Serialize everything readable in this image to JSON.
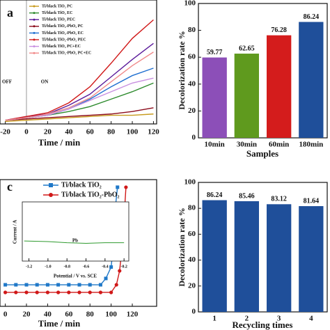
{
  "chart_data": [
    {
      "type": "line",
      "label": "a",
      "xlabel": "Time / min",
      "annotations": [
        "OFF",
        "ON"
      ],
      "xlim": [
        -25,
        123
      ],
      "xticks": [
        -20,
        0,
        20,
        40,
        60,
        80,
        100,
        120
      ],
      "ylim": [
        0,
        100
      ],
      "series": [
        {
          "name": "Ti/black TiO₂ PC",
          "color": "#c79a1c",
          "x": [
            -20,
            0,
            20,
            40,
            60,
            80,
            100,
            120
          ],
          "values": [
            2,
            3,
            4,
            5,
            6,
            7,
            7,
            8
          ]
        },
        {
          "name": "Ti/black TiO₂ EC",
          "color": "#2e8b2e",
          "x": [
            -20,
            0,
            20,
            40,
            60,
            80,
            100,
            120
          ],
          "values": [
            3,
            5,
            7,
            10,
            14,
            20,
            26,
            33
          ]
        },
        {
          "name": "Ti/black TiO₂ PEC",
          "color": "#5a1a9a",
          "x": [
            -20,
            0,
            20,
            40,
            60,
            80,
            100,
            120
          ],
          "values": [
            3,
            6,
            8,
            15,
            24,
            38,
            52,
            65
          ]
        },
        {
          "name": "Ti/black TiO₂-PbO₂ PC",
          "color": "#8b0a1a",
          "x": [
            -20,
            0,
            20,
            40,
            60,
            80,
            100,
            120
          ],
          "values": [
            3,
            4,
            5,
            6,
            7,
            8,
            10,
            13
          ]
        },
        {
          "name": "Ti/black TiO₂-PbO₂ EC",
          "color": "#1f6fd0",
          "x": [
            -20,
            0,
            20,
            40,
            60,
            80,
            100,
            120
          ],
          "values": [
            3,
            5,
            7,
            12,
            20,
            30,
            39,
            45
          ]
        },
        {
          "name": "Ti/black TiO₂-PbO₂ PEC",
          "color": "#d01818",
          "x": [
            -20,
            0,
            20,
            40,
            60,
            80,
            100,
            120
          ],
          "values": [
            3,
            6,
            9,
            17,
            30,
            49,
            69,
            84
          ]
        },
        {
          "name": "Ti/black TiO₂ PC+EC",
          "color": "#c890e0",
          "x": [
            -20,
            0,
            20,
            40,
            60,
            80,
            100,
            120
          ],
          "values": [
            3,
            5,
            7,
            12,
            19,
            26,
            33,
            37
          ]
        },
        {
          "name": "Ti/black TiO₂-PbO₂ PC+EC",
          "color": "#f08a8a",
          "x": [
            -20,
            0,
            20,
            40,
            60,
            80,
            100,
            120
          ],
          "values": [
            3,
            5,
            8,
            13,
            21,
            34,
            47,
            58
          ]
        }
      ]
    },
    {
      "type": "bar",
      "xlabel": "Samples",
      "ylabel": "Decolorization rate %",
      "categories": [
        "10min",
        "30min",
        "60min",
        "180min"
      ],
      "values": [
        59.77,
        62.65,
        76.28,
        86.24
      ],
      "colors": [
        "#8c4fb8",
        "#5f9a1e",
        "#d41c1c",
        "#1f4f9a"
      ],
      "ylim": [
        0,
        100
      ],
      "yticks": [
        0,
        20,
        40,
        60,
        80,
        100
      ]
    },
    {
      "type": "line",
      "label": "c",
      "xlabel": "Time / min",
      "xlim": [
        -5,
        143
      ],
      "xticks": [
        0,
        20,
        40,
        60,
        80,
        100,
        120
      ],
      "ylim": [
        0,
        100
      ],
      "series": [
        {
          "name": "Ti/black TiO₂",
          "color": "#1f78c8",
          "marker": "square",
          "x": [
            0,
            10,
            20,
            30,
            40,
            50,
            60,
            70,
            80,
            90,
            95,
            100,
            102,
            104,
            106
          ],
          "values": [
            17,
            17,
            17,
            17,
            17,
            17,
            17,
            17,
            17,
            17,
            22,
            31,
            47,
            78,
            94
          ]
        },
        {
          "name": "Ti/black TiO₂-PbO₂",
          "color": "#d01818",
          "marker": "circle",
          "x": [
            0,
            10,
            20,
            30,
            40,
            50,
            60,
            70,
            80,
            90,
            100,
            105,
            108,
            110,
            112,
            114
          ],
          "values": [
            11,
            11,
            11,
            11,
            11,
            11,
            11,
            11,
            11,
            11,
            11,
            17,
            28,
            44,
            67,
            94
          ]
        }
      ]
    },
    {
      "type": "line",
      "xlabel": "Potential / V vs. SCE",
      "ylabel": "Current / A",
      "annotations": [
        "Pb"
      ],
      "xlim": [
        -1.27,
        -0.15
      ],
      "xticks": [
        -1.2,
        {
          "value": -1,
          "label": "-1.0"
        },
        -0.8,
        -0.6,
        -0.4,
        -0.2
      ],
      "ylim": [
        0,
        10
      ],
      "series": [
        {
          "name": null,
          "color": "#2e9a2e",
          "x": [
            -1.25,
            -1.0,
            -0.8,
            -0.6,
            -0.4,
            -0.2
          ],
          "values": [
            3.4,
            3.3,
            3.1,
            3.0,
            3.1,
            3.1
          ]
        }
      ]
    },
    {
      "type": "bar",
      "xlabel": "Recycling times",
      "ylabel": "Decolorization rate %",
      "categories": [
        "1",
        "2",
        "3",
        "4"
      ],
      "values": [
        86.24,
        85.46,
        83.12,
        81.64
      ],
      "colors": [
        "#1f4f9a",
        "#1f4f9a",
        "#1f4f9a",
        "#1f4f9a"
      ],
      "ylim": [
        0,
        100
      ],
      "yticks": [
        0,
        20,
        40,
        60,
        80,
        100
      ]
    }
  ]
}
